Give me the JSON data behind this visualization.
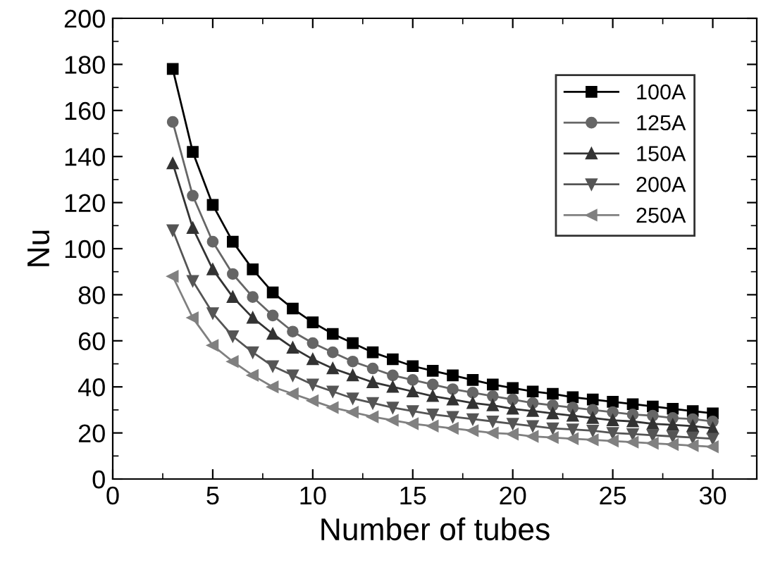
{
  "chart_data": {
    "type": "line",
    "xlabel": "Number of tubes",
    "ylabel": "Nu",
    "x": [
      3,
      4,
      5,
      6,
      7,
      8,
      9,
      10,
      11,
      12,
      13,
      14,
      15,
      16,
      17,
      18,
      19,
      20,
      21,
      22,
      23,
      24,
      25,
      26,
      27,
      28,
      29,
      30
    ],
    "series": [
      {
        "name": "100A",
        "color": "#000000",
        "marker": "square",
        "values": [
          178,
          142,
          119,
          103,
          91,
          81,
          74,
          68,
          63,
          59,
          55,
          52,
          49,
          47,
          45,
          43,
          41,
          39.5,
          38,
          37,
          35.5,
          34.5,
          33.5,
          32.5,
          31.5,
          30.5,
          29.5,
          28.5
        ]
      },
      {
        "name": "125A",
        "color": "#666666",
        "marker": "circle",
        "values": [
          155,
          123,
          103,
          89,
          79,
          71,
          64,
          59,
          55,
          51,
          48,
          45,
          43,
          41,
          39,
          37.5,
          36,
          34.5,
          33,
          32,
          31,
          30,
          29,
          28,
          27.5,
          26.5,
          26,
          25
        ]
      },
      {
        "name": "150A",
        "color": "#333333",
        "marker": "triangle",
        "values": [
          137,
          109,
          91,
          79,
          70,
          63,
          57,
          52,
          48,
          45,
          42,
          40,
          38,
          36,
          34.5,
          33,
          32,
          30.5,
          29.5,
          28.5,
          27.5,
          26.5,
          25.5,
          25,
          24,
          23.5,
          23,
          22
        ]
      },
      {
        "name": "200A",
        "color": "#555555",
        "marker": "triangle-down",
        "values": [
          108,
          86,
          72,
          62,
          55,
          49,
          45,
          41,
          38,
          35,
          33,
          31,
          29.5,
          28,
          27,
          26,
          25,
          24,
          23,
          22,
          21.5,
          21,
          20,
          19.5,
          19,
          18.5,
          18,
          17.5
        ]
      },
      {
        "name": "250A",
        "color": "#808080",
        "marker": "triangle-left",
        "values": [
          88,
          70,
          58,
          51,
          45,
          40,
          37,
          34,
          31,
          29,
          27,
          25.5,
          24,
          23,
          22,
          21,
          20,
          19.5,
          18.5,
          18,
          17.5,
          17,
          16.5,
          16,
          15.5,
          15,
          14.5,
          14
        ]
      }
    ],
    "xlim": [
      0,
      32.2
    ],
    "xticks": [
      0,
      5,
      10,
      15,
      20,
      25,
      30
    ],
    "ylim": [
      0,
      200
    ],
    "yticks": [
      0,
      20,
      40,
      60,
      80,
      100,
      120,
      140,
      160,
      180,
      200
    ],
    "grid": false,
    "legend": "top right",
    "line_style": "solid"
  }
}
